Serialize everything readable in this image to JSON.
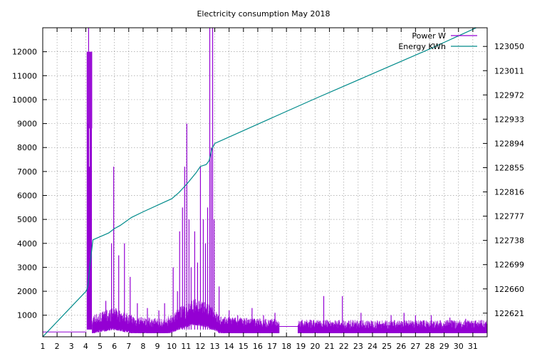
{
  "chart_data": {
    "type": "line",
    "title": "Electricity consumption May 2018",
    "xlabel": "",
    "ylabel": "",
    "y2label": "",
    "grid": true,
    "legend_position": "top-right",
    "x_ticks": [
      1,
      2,
      3,
      4,
      5,
      6,
      7,
      8,
      9,
      10,
      11,
      12,
      13,
      14,
      15,
      16,
      17,
      18,
      19,
      20,
      21,
      22,
      23,
      24,
      25,
      26,
      27,
      28,
      29,
      30,
      31
    ],
    "xlim": [
      1,
      32
    ],
    "y_ticks": [
      1000,
      2000,
      3000,
      4000,
      5000,
      6000,
      7000,
      8000,
      9000,
      10000,
      11000,
      12000
    ],
    "ylim": [
      100,
      13000
    ],
    "y2_ticks": [
      122621,
      122660,
      122699,
      122738,
      122777,
      122816,
      122855,
      122894,
      122933,
      122972,
      123011,
      123050
    ],
    "y2lim": [
      122583,
      123080
    ],
    "series": [
      {
        "name": "Power W",
        "axis": "left",
        "color": "#9400d3",
        "baseline_segments": [
          {
            "x": [
              1.0,
              4.05
            ],
            "y": [
              300,
              300
            ]
          },
          {
            "x": [
              17.5,
              18.8
            ],
            "y": [
              530,
              530
            ]
          }
        ],
        "spikes": [
          {
            "x": 4.1,
            "y": 12000
          },
          {
            "x": 4.15,
            "y": 9000
          },
          {
            "x": 4.2,
            "y": 13000
          },
          {
            "x": 4.25,
            "y": 7200
          },
          {
            "x": 4.3,
            "y": 12000
          },
          {
            "x": 4.35,
            "y": 8800
          },
          {
            "x": 4.4,
            "y": 12000
          },
          {
            "x": 5.4,
            "y": 1600
          },
          {
            "x": 5.8,
            "y": 4000
          },
          {
            "x": 5.95,
            "y": 7200
          },
          {
            "x": 6.3,
            "y": 3500
          },
          {
            "x": 6.7,
            "y": 4000
          },
          {
            "x": 7.1,
            "y": 2600
          },
          {
            "x": 7.6,
            "y": 1500
          },
          {
            "x": 8.3,
            "y": 1300
          },
          {
            "x": 9.1,
            "y": 1200
          },
          {
            "x": 9.5,
            "y": 1500
          },
          {
            "x": 10.1,
            "y": 3000
          },
          {
            "x": 10.4,
            "y": 2000
          },
          {
            "x": 10.55,
            "y": 4500
          },
          {
            "x": 10.75,
            "y": 5500
          },
          {
            "x": 10.9,
            "y": 7200
          },
          {
            "x": 11.05,
            "y": 9000
          },
          {
            "x": 11.2,
            "y": 5000
          },
          {
            "x": 11.35,
            "y": 3000
          },
          {
            "x": 11.6,
            "y": 4500
          },
          {
            "x": 11.8,
            "y": 3200
          },
          {
            "x": 12.0,
            "y": 7200
          },
          {
            "x": 12.2,
            "y": 5000
          },
          {
            "x": 12.35,
            "y": 4000
          },
          {
            "x": 12.5,
            "y": 5500
          },
          {
            "x": 12.65,
            "y": 13000
          },
          {
            "x": 12.75,
            "y": 8000
          },
          {
            "x": 12.85,
            "y": 13000
          },
          {
            "x": 12.95,
            "y": 5000
          },
          {
            "x": 13.3,
            "y": 2200
          },
          {
            "x": 14.0,
            "y": 1200
          },
          {
            "x": 14.6,
            "y": 1000
          },
          {
            "x": 15.6,
            "y": 1300
          },
          {
            "x": 16.4,
            "y": 1000
          },
          {
            "x": 17.2,
            "y": 1100
          },
          {
            "x": 20.6,
            "y": 1800
          },
          {
            "x": 21.9,
            "y": 1800
          },
          {
            "x": 23.2,
            "y": 1100
          },
          {
            "x": 25.3,
            "y": 1000
          },
          {
            "x": 26.2,
            "y": 1100
          },
          {
            "x": 27.0,
            "y": 1000
          },
          {
            "x": 28.1,
            "y": 1000
          },
          {
            "x": 29.4,
            "y": 900
          },
          {
            "x": 30.5,
            "y": 850
          },
          {
            "x": 31.6,
            "y": 800
          }
        ],
        "noise_floor": [
          {
            "x": 4.5,
            "y": 550
          },
          {
            "x": 6.0,
            "y": 700
          },
          {
            "x": 7.5,
            "y": 500
          },
          {
            "x": 9.5,
            "y": 450
          },
          {
            "x": 10.5,
            "y": 700
          },
          {
            "x": 11.5,
            "y": 900
          },
          {
            "x": 12.5,
            "y": 800
          },
          {
            "x": 13.5,
            "y": 500
          },
          {
            "x": 17.0,
            "y": 450
          },
          {
            "x": 19.0,
            "y": 430
          },
          {
            "x": 25.0,
            "y": 420
          },
          {
            "x": 32.0,
            "y": 420
          }
        ]
      },
      {
        "name": "Energy KWh",
        "axis": "right",
        "color": "#008b8b",
        "x": [
          1.0,
          4.05,
          4.15,
          4.3,
          4.5,
          5.6,
          6.0,
          6.4,
          7.2,
          8.0,
          10.0,
          10.5,
          10.7,
          11.1,
          11.7,
          12.0,
          12.4,
          12.6,
          12.8,
          13.0,
          16.0,
          20.0,
          24.0,
          28.0,
          32.0
        ],
        "y": [
          122583,
          122657,
          122665,
          122700,
          122739,
          122750,
          122757,
          122762,
          122775,
          122784,
          122805,
          122815,
          122820,
          122830,
          122847,
          122857,
          122860,
          122866,
          122885,
          122894,
          122925,
          122966,
          123006,
          123046,
          123088
        ]
      }
    ]
  }
}
